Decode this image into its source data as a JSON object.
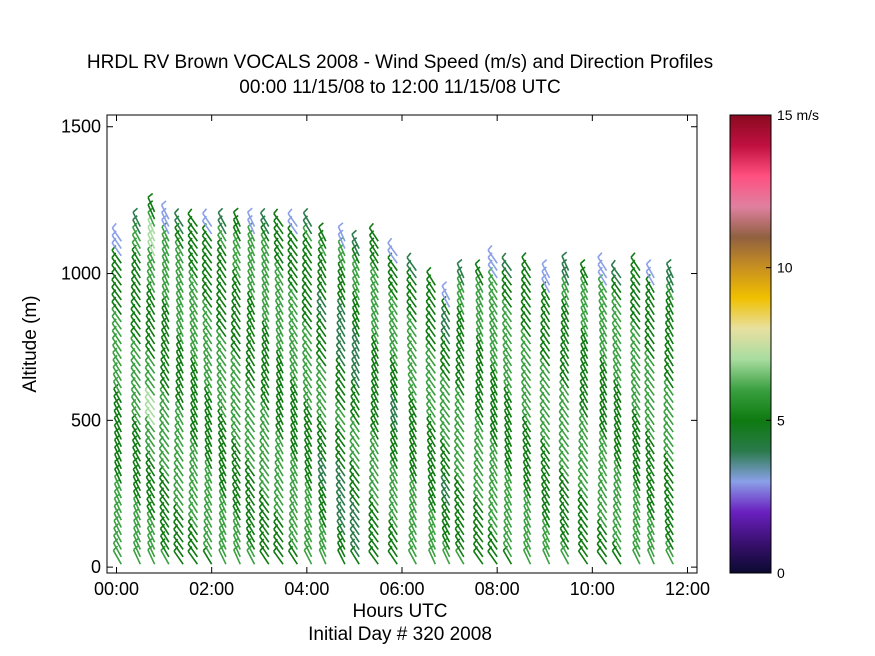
{
  "chart_data": {
    "type": "scatter",
    "title": "HRDL RV Brown VOCALS 2008 - Wind Speed (m/s) and Direction Profiles",
    "subtitle": "00:00 11/15/08 to 12:00 11/15/08  UTC",
    "xlabel": "Hours UTC",
    "xsublabel": "Initial Day # 320  2008",
    "ylabel": "Altitude (m)",
    "xlim": [
      -0.2,
      12.2
    ],
    "ylim": [
      -20,
      1540
    ],
    "xticks": [
      "00:00",
      "02:00",
      "04:00",
      "06:00",
      "08:00",
      "10:00",
      "12:00"
    ],
    "xtick_values": [
      0,
      2,
      4,
      6,
      8,
      10,
      12
    ],
    "yticks": [
      "0",
      "500",
      "1000",
      "1500"
    ],
    "ytick_values": [
      0,
      500,
      1000,
      1500
    ],
    "colorbar": {
      "range": [
        0,
        15
      ],
      "unit_label": "15 m/s",
      "ticks": [
        "0",
        "5",
        "10"
      ],
      "tick_values": [
        0,
        5,
        10
      ],
      "gradient_colors": [
        "#0a0a30",
        "#3a1070",
        "#6a20c0",
        "#8aa0e8",
        "#2a7a4a",
        "#0e7a10",
        "#3aa040",
        "#a8dca0",
        "#e8e0a0",
        "#f0c000",
        "#c89020",
        "#906040",
        "#e080a0",
        "#ff5080",
        "#c01040",
        "#8a0a20"
      ]
    },
    "profiles": [
      {
        "hour": 0.1,
        "top": 1110,
        "speed": 5.5,
        "dir": 330
      },
      {
        "hour": 0.5,
        "top": 1170,
        "speed": 5.5,
        "dir": 330
      },
      {
        "hour": 0.8,
        "top": 1220,
        "speed": 5.8,
        "dir": 330
      },
      {
        "hour": 1.1,
        "top": 1190,
        "speed": 5.5,
        "dir": 330
      },
      {
        "hour": 1.4,
        "top": 1180,
        "speed": 5.7,
        "dir": 330
      },
      {
        "hour": 1.7,
        "top": 1170,
        "speed": 5.5,
        "dir": 330
      },
      {
        "hour": 2.0,
        "top": 1180,
        "speed": 5.6,
        "dir": 330
      },
      {
        "hour": 2.3,
        "top": 1170,
        "speed": 5.5,
        "dir": 330
      },
      {
        "hour": 2.6,
        "top": 1160,
        "speed": 5.6,
        "dir": 330
      },
      {
        "hour": 2.9,
        "top": 1180,
        "speed": 5.5,
        "dir": 330
      },
      {
        "hour": 3.2,
        "top": 1170,
        "speed": 5.6,
        "dir": 330
      },
      {
        "hour": 3.5,
        "top": 1160,
        "speed": 5.5,
        "dir": 330
      },
      {
        "hour": 3.8,
        "top": 1180,
        "speed": 5.6,
        "dir": 330
      },
      {
        "hour": 4.1,
        "top": 1170,
        "speed": 5.5,
        "dir": 330
      },
      {
        "hour": 4.4,
        "top": 1130,
        "speed": 5.2,
        "dir": 330
      },
      {
        "hour": 4.8,
        "top": 1130,
        "speed": 4.8,
        "dir": 330
      },
      {
        "hour": 5.1,
        "top": 1100,
        "speed": 4.9,
        "dir": 330
      },
      {
        "hour": 5.5,
        "top": 1120,
        "speed": 5.3,
        "dir": 330
      },
      {
        "hour": 5.9,
        "top": 1080,
        "speed": 5.2,
        "dir": 330
      },
      {
        "hour": 6.3,
        "top": 1030,
        "speed": 5.5,
        "dir": 330
      },
      {
        "hour": 6.7,
        "top": 980,
        "speed": 5.4,
        "dir": 330
      },
      {
        "hour": 7.0,
        "top": 920,
        "speed": 5.2,
        "dir": 330
      },
      {
        "hour": 7.3,
        "top": 1000,
        "speed": 5.6,
        "dir": 330
      },
      {
        "hour": 7.7,
        "top": 1000,
        "speed": 5.5,
        "dir": 330
      },
      {
        "hour": 8.0,
        "top": 1040,
        "speed": 5.6,
        "dir": 330
      },
      {
        "hour": 8.3,
        "top": 1030,
        "speed": 5.5,
        "dir": 330
      },
      {
        "hour": 8.7,
        "top": 1010,
        "speed": 5.6,
        "dir": 330
      },
      {
        "hour": 9.1,
        "top": 990,
        "speed": 5.5,
        "dir": 330
      },
      {
        "hour": 9.5,
        "top": 1010,
        "speed": 5.6,
        "dir": 330
      },
      {
        "hour": 9.9,
        "top": 1000,
        "speed": 5.5,
        "dir": 330
      },
      {
        "hour": 10.3,
        "top": 1010,
        "speed": 5.6,
        "dir": 330
      },
      {
        "hour": 10.6,
        "top": 1000,
        "speed": 5.5,
        "dir": 330
      },
      {
        "hour": 11.0,
        "top": 1010,
        "speed": 5.6,
        "dir": 330
      },
      {
        "hour": 11.3,
        "top": 1000,
        "speed": 5.5,
        "dir": 330
      },
      {
        "hour": 11.7,
        "top": 990,
        "speed": 5.4,
        "dir": 330
      }
    ]
  }
}
